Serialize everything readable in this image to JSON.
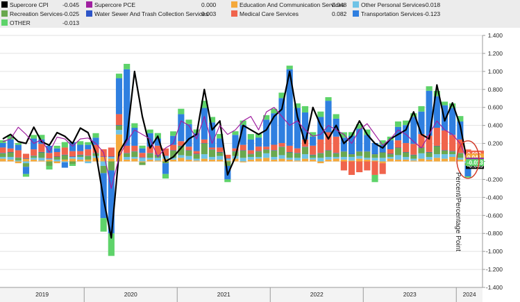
{
  "legend": [
    {
      "name": "Supercore CPI",
      "value": "-0.045",
      "color": "#000000"
    },
    {
      "name": "Supercore PCE",
      "value": "0.000",
      "color": "#a020a0"
    },
    {
      "name": "Education And Communication Services",
      "value": "0.048",
      "color": "#f4a93c"
    },
    {
      "name": "Other Personal Services",
      "value": "-0.018",
      "color": "#6fc3e6"
    },
    {
      "name": "Recreation Services",
      "value": "-0.025",
      "color": "#6aa84f"
    },
    {
      "name": "Water Sewer And Trash Collection Services",
      "value": "0.003",
      "color": "#2d55c8"
    },
    {
      "name": "Medical Care Services",
      "value": "0.082",
      "color": "#f0644c"
    },
    {
      "name": "Transportation Services",
      "value": "-0.123",
      "color": "#2f7fe0"
    },
    {
      "name": "OTHER",
      "value": "-0.013",
      "color": "#5ed36a"
    }
  ],
  "right_labels": [
    {
      "text": "0.082",
      "color": "#f0644c",
      "y": 0.082
    },
    {
      "text": "0.048",
      "color": "#f4a93c",
      "y": 0.048
    },
    {
      "text": "0.003",
      "color": "#2d55c8",
      "y": 0.003
    },
    {
      "text": "0",
      "color": "#a020a0",
      "y": 0.0
    },
    {
      "text": "-0.045",
      "color": "#000000",
      "y": -0.045
    },
    {
      "text": "-0.013",
      "color": "#5ed36a",
      "y": -0.013
    }
  ],
  "chart_data": {
    "type": "bar",
    "stacked": true,
    "ylabel": "Percent/Percentage Point",
    "ylim": [
      -1.4,
      1.4
    ],
    "yticks": [
      1.4,
      1.2,
      1.0,
      0.8,
      0.6,
      0.4,
      0.2,
      0.0,
      -0.2,
      -0.4,
      -0.6,
      -0.8,
      -1.0,
      -1.2,
      -1.4
    ],
    "yticklabels": [
      "1.400",
      "1.200",
      "1.000",
      "0.800",
      "0.600",
      "0.400",
      "0.200",
      "",
      "-0.200",
      "-0.400",
      "-0.600",
      "-0.800",
      "-1.000",
      "-1.200",
      "-1.400"
    ],
    "x_axis": {
      "type": "monthly",
      "start": "2019-02",
      "periods": 61,
      "year_labels": [
        "2019",
        "2020",
        "2021",
        "2022",
        "2023",
        "2024"
      ]
    },
    "series": [
      {
        "name": "Education And Communication Services",
        "color": "#f4a93c",
        "values": [
          0.03,
          0.02,
          -0.02,
          0.03,
          0.02,
          0.01,
          0.02,
          -0.02,
          0.02,
          0.03,
          0.02,
          0.02,
          0.04,
          0.05,
          0.03,
          0.3,
          0.02,
          0.03,
          -0.01,
          0.02,
          0.01,
          0.03,
          0.02,
          0.04,
          0.02,
          0.01,
          0.03,
          0.02,
          0.02,
          0.01,
          0.03,
          -0.01,
          0.02,
          0.03,
          0.04,
          0.02,
          0.03,
          0.02,
          0.01,
          0.03,
          0.02,
          -0.02,
          0.02,
          0.03,
          0.02,
          0.01,
          0.03,
          0.02,
          0.01,
          -0.02,
          0.03,
          0.02,
          0.02,
          0.01,
          0.03,
          0.02,
          0.04,
          0.03,
          0.05,
          0.02,
          0.048
        ]
      },
      {
        "name": "Other Personal Services",
        "color": "#6fc3e6",
        "values": [
          0.02,
          0.03,
          0.01,
          -0.02,
          0.02,
          0.03,
          0.01,
          0.02,
          -0.01,
          0.02,
          0.03,
          -0.02,
          0.02,
          -0.05,
          0.02,
          0.05,
          0.03,
          0.02,
          0.04,
          0.02,
          0.03,
          0.03,
          0.02,
          0.03,
          0.04,
          0.02,
          0.05,
          0.03,
          0.04,
          0.02,
          0.03,
          0.04,
          0.03,
          0.02,
          0.05,
          0.03,
          0.04,
          0.02,
          0.03,
          0.05,
          0.02,
          0.04,
          0.03,
          0.02,
          0.03,
          0.04,
          0.03,
          0.02,
          0.03,
          0.04,
          0.02,
          0.05,
          0.03,
          0.02,
          0.06,
          0.03,
          0.04,
          0.05,
          0.03,
          0.02,
          -0.018
        ]
      },
      {
        "name": "Recreation Services",
        "color": "#6aa84f",
        "values": [
          0.04,
          0.05,
          0.03,
          -0.04,
          0.02,
          0.06,
          -0.05,
          0.03,
          0.05,
          -0.03,
          0.02,
          0.04,
          0.03,
          -0.08,
          -0.1,
          0.05,
          0.04,
          0.06,
          -0.03,
          0.05,
          0.03,
          -0.02,
          0.08,
          0.1,
          0.06,
          0.05,
          0.12,
          0.08,
          0.04,
          -0.05,
          0.05,
          0.08,
          0.03,
          0.06,
          0.04,
          0.07,
          0.09,
          0.06,
          0.05,
          0.08,
          0.03,
          0.05,
          0.07,
          0.04,
          0.06,
          0.03,
          0.05,
          0.07,
          0.04,
          0.06,
          0.03,
          0.08,
          0.05,
          0.04,
          0.06,
          0.05,
          0.09,
          0.04,
          0.03,
          0.05,
          -0.025
        ]
      },
      {
        "name": "Water Sewer And Trash Collection Services",
        "color": "#2d55c8",
        "values": [
          0.005,
          0.004,
          0.004,
          0.005,
          0.004,
          0.005,
          0.004,
          0.004,
          0.005,
          0.004,
          0.005,
          0.004,
          0.004,
          0.005,
          0.004,
          0.005,
          0.004,
          0.004,
          0.005,
          0.004,
          0.005,
          0.004,
          0.004,
          0.005,
          0.004,
          0.005,
          0.004,
          0.004,
          0.005,
          0.004,
          0.005,
          0.004,
          0.004,
          0.005,
          0.004,
          0.005,
          0.004,
          0.004,
          0.005,
          0.004,
          0.005,
          0.004,
          0.004,
          0.005,
          0.004,
          0.005,
          0.004,
          0.004,
          0.005,
          0.004,
          0.005,
          0.004,
          0.004,
          0.005,
          0.004,
          0.005,
          0.004,
          0.004,
          0.005,
          0.004,
          0.003
        ]
      },
      {
        "name": "Medical Care Services",
        "color": "#f0644c",
        "values": [
          0.06,
          0.04,
          0.08,
          0.05,
          0.07,
          0.09,
          0.06,
          0.05,
          0.08,
          0.06,
          0.04,
          0.07,
          0.09,
          0.08,
          0.1,
          0.12,
          0.08,
          0.06,
          0.05,
          0.07,
          0.1,
          0.08,
          0.06,
          0.05,
          0.04,
          0.03,
          0.04,
          0.02,
          0.05,
          0.04,
          0.03,
          0.06,
          0.04,
          0.05,
          0.03,
          0.06,
          0.04,
          0.07,
          0.05,
          0.08,
          0.1,
          0.15,
          0.2,
          0.18,
          -0.1,
          -0.15,
          -0.12,
          -0.1,
          -0.15,
          -0.12,
          0.05,
          0.08,
          0.1,
          0.12,
          0.15,
          0.18,
          0.2,
          0.22,
          0.18,
          0.15,
          0.082
        ]
      },
      {
        "name": "Transportation Services",
        "color": "#2f7fe0",
        "values": [
          0.05,
          0.1,
          0.06,
          -0.08,
          0.12,
          0.05,
          0.08,
          0.04,
          -0.06,
          0.1,
          0.07,
          0.05,
          0.08,
          -0.5,
          -0.7,
          0.4,
          0.85,
          0.2,
          0.05,
          0.15,
          0.08,
          -0.12,
          0.1,
          0.3,
          0.25,
          0.2,
          0.35,
          0.28,
          0.1,
          -0.15,
          0.15,
          0.22,
          0.12,
          0.1,
          0.3,
          0.35,
          0.5,
          0.85,
          0.45,
          0.3,
          0.1,
          0.25,
          0.35,
          0.2,
          0.15,
          0.2,
          0.25,
          0.18,
          0.12,
          0.08,
          0.1,
          0.15,
          0.2,
          0.3,
          0.25,
          0.5,
          0.35,
          0.28,
          0.3,
          0.2,
          -0.123
        ]
      },
      {
        "name": "OTHER",
        "color": "#5ed36a",
        "values": [
          0.03,
          0.05,
          0.02,
          -0.03,
          0.04,
          0.05,
          -0.04,
          0.03,
          0.06,
          -0.02,
          0.04,
          0.03,
          0.05,
          -0.15,
          -0.25,
          0.05,
          0.06,
          0.05,
          0.03,
          0.04,
          0.06,
          -0.05,
          0.05,
          0.06,
          0.05,
          0.04,
          0.08,
          0.06,
          0.05,
          -0.03,
          0.04,
          0.05,
          0.06,
          0.04,
          0.05,
          0.05,
          0.06,
          0.04,
          0.05,
          0.07,
          0.05,
          0.06,
          0.04,
          0.05,
          0.06,
          0.04,
          0.05,
          0.06,
          -0.08,
          0.05,
          0.04,
          0.06,
          0.05,
          0.04,
          0.06,
          0.05,
          0.06,
          0.04,
          0.05,
          0.06,
          -0.013
        ]
      }
    ],
    "lines": [
      {
        "name": "Supercore CPI",
        "color": "#000000",
        "values": [
          0.25,
          0.3,
          0.22,
          0.2,
          0.38,
          0.22,
          0.18,
          0.32,
          0.28,
          0.2,
          0.37,
          0.32,
          0.1,
          -0.42,
          -0.85,
          0.1,
          0.25,
          1.0,
          0.5,
          0.15,
          0.28,
          0.0,
          0.05,
          0.15,
          0.25,
          0.3,
          0.8,
          0.35,
          0.45,
          -0.15,
          0.05,
          0.4,
          0.35,
          0.3,
          0.35,
          0.5,
          0.58,
          1.0,
          0.5,
          0.2,
          0.6,
          0.4,
          0.25,
          0.4,
          0.2,
          0.28,
          0.45,
          0.3,
          0.2,
          0.15,
          0.25,
          0.3,
          0.35,
          0.55,
          0.3,
          0.25,
          0.85,
          0.45,
          0.65,
          0.4,
          -0.045
        ]
      },
      {
        "name": "Supercore PCE",
        "color": "#a020a0",
        "values": [
          0.22,
          0.25,
          0.38,
          0.3,
          0.2,
          0.24,
          0.1,
          0.27,
          0.25,
          0.17,
          0.25,
          0.26,
          0.2,
          0.1,
          -0.3,
          0.05,
          0.22,
          0.35,
          0.3,
          0.25,
          0.05,
          0.15,
          0.2,
          0.45,
          0.4,
          0.25,
          0.5,
          0.2,
          0.4,
          0.3,
          0.35,
          0.45,
          0.5,
          0.35,
          0.55,
          0.6,
          0.5,
          0.4,
          0.45,
          0.35,
          0.28,
          0.3,
          0.4,
          0.35,
          0.3,
          0.2,
          0.35,
          0.42,
          0.3,
          0.18,
          0.25,
          0.35,
          0.3,
          0.22,
          0.15,
          0.3,
          0.45,
          0.35,
          0.3,
          0.2,
          0.0
        ]
      }
    ]
  }
}
